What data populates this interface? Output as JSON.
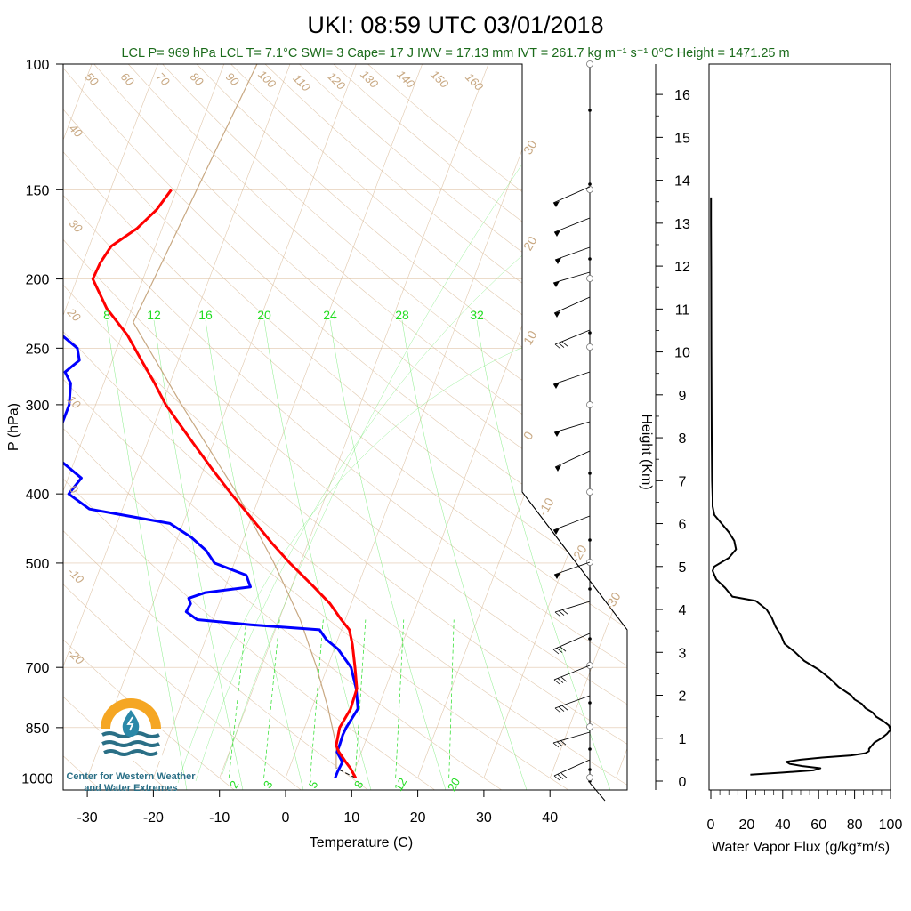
{
  "title": "UKI: 08:59 UTC 03/01/2018",
  "subtitle": {
    "parts": [
      "LCL P= 969 hPa",
      "LCL T= 7.1°C",
      "SWI= 3",
      "Cape= 17 J",
      "IWV = 17.13 mm",
      "IVT = 261.7 kg m⁻¹ s⁻¹",
      "0°C Height = 1471.25 m"
    ]
  },
  "logo": {
    "line1": "Center for Western Weather",
    "line2": "and Water Extremes"
  },
  "colors": {
    "temperature": "#ff0000",
    "dewpoint": "#0000ff",
    "dry_adiabat": "#d6b48f",
    "mixing_ratio": "#22dd22",
    "parcel": "#c8a882",
    "flux": "#000000"
  },
  "chart_data": [
    {
      "type": "line",
      "subtype": "skew-T log-P",
      "xlabel": "Temperature (C)",
      "ylabel": "P (hPa)",
      "xlim": [
        -34,
        52
      ],
      "ylim": [
        1000,
        100
      ],
      "x_ticks": [
        "-30",
        "-20",
        "-10",
        "0",
        "10",
        "20",
        "30",
        "40"
      ],
      "y_ticks": [
        "100",
        "150",
        "200",
        "250",
        "300",
        "400",
        "500",
        "700",
        "850",
        "1000"
      ],
      "dry_adiabat_labels": [
        "50",
        "60",
        "70",
        "80",
        "90",
        "100",
        "110",
        "120",
        "130",
        "140",
        "150",
        "160",
        "40",
        "30",
        "20",
        "10",
        "0",
        "-10",
        "-20"
      ],
      "moist_adiabat_labels": [
        "30",
        "20",
        "10",
        "0",
        "-10",
        "-20",
        "-30"
      ],
      "mixing_ratio_labels_upper": [
        "8",
        "12",
        "16",
        "20",
        "24",
        "28",
        "32"
      ],
      "mixing_ratio_labels_lower": [
        "2",
        "3",
        "5",
        "8",
        "12",
        "20"
      ],
      "series": [
        {
          "name": "temperature",
          "p": [
            1000,
            970,
            950,
            920,
            900,
            850,
            800,
            750,
            700,
            650,
            620,
            600,
            570,
            540,
            500,
            470,
            440,
            400,
            370,
            340,
            300,
            280,
            260,
            240,
            220,
            200,
            190,
            180,
            170,
            160,
            150
          ],
          "t": [
            10.6,
            9.3,
            8.2,
            6.6,
            5.8,
            5.3,
            5.9,
            5.7,
            4.2,
            2.5,
            1.2,
            -0.6,
            -3.2,
            -6.6,
            -11.6,
            -15.3,
            -19.0,
            -24.4,
            -28.6,
            -33.0,
            -39.4,
            -42.3,
            -45.6,
            -49.1,
            -53.8,
            -57.6,
            -57.4,
            -56.7,
            -53.8,
            -51.9,
            -50.8
          ]
        },
        {
          "name": "dewpoint",
          "p": [
            1000,
            980,
            950,
            920,
            900,
            870,
            850,
            800,
            750,
            700,
            660,
            640,
            620,
            610,
            600,
            585,
            570,
            560,
            550,
            540,
            520,
            500,
            480,
            460,
            440,
            420,
            400,
            380,
            360,
            340,
            320,
            300,
            280,
            270,
            260,
            250,
            240,
            220,
            200,
            190,
            180,
            170,
            160,
            150
          ],
          "td": [
            7.5,
            7.5,
            7.7,
            6.3,
            6.3,
            6.2,
            6.3,
            7.0,
            5.6,
            3.6,
            0.6,
            -1.7,
            -3.3,
            -14.0,
            -22.4,
            -24.5,
            -24.3,
            -24.9,
            -22.7,
            -16.2,
            -17.5,
            -23.0,
            -25.0,
            -28.0,
            -32.0,
            -45.0,
            -49.0,
            -48.0,
            -52.0,
            -54.0,
            -54.0,
            -54.0,
            -55.0,
            -56.5,
            -55.0,
            -56.0,
            -59.0,
            -63.5,
            -65.0,
            -67.0,
            -68.0,
            -70.5,
            -67.6,
            -69.0
          ]
        },
        {
          "name": "parcel",
          "p": [
            969,
            900,
            800,
            700,
            600,
            500,
            400,
            300,
            230,
            100
          ],
          "t": [
            7.1,
            5.8,
            2.5,
            -1.6,
            -6.8,
            -14.0,
            -23.5,
            -37.0,
            -49.0,
            -45.0
          ]
        }
      ]
    },
    {
      "type": "line",
      "xlabel": "Water Vapor Flux (g/kg*m/s)",
      "ylabel": "Height (Km)",
      "xlim": [
        0,
        100
      ],
      "ylim": [
        0,
        16.5
      ],
      "x_ticks": [
        "0",
        "20",
        "40",
        "60",
        "80",
        "100"
      ],
      "y_ticks": [
        "0",
        "1",
        "2",
        "3",
        "4",
        "5",
        "6",
        "7",
        "8",
        "9",
        "10",
        "11",
        "12",
        "13",
        "14",
        "15",
        "16"
      ],
      "series": [
        {
          "name": "flux",
          "height_km": [
            0.15,
            0.2,
            0.25,
            0.3,
            0.35,
            0.4,
            0.45,
            0.5,
            0.55,
            0.6,
            0.65,
            0.7,
            0.75,
            0.8,
            0.9,
            1.0,
            1.1,
            1.2,
            1.3,
            1.4,
            1.5,
            1.6,
            1.7,
            1.8,
            1.9,
            2.0,
            2.2,
            2.4,
            2.6,
            2.8,
            3.0,
            3.2,
            3.4,
            3.6,
            3.8,
            4.0,
            4.2,
            4.3,
            4.5,
            4.7,
            4.9,
            5.0,
            5.2,
            5.4,
            5.6,
            5.8,
            6.0,
            6.2,
            6.4,
            6.6,
            7.0,
            8.0,
            10.0,
            12.0,
            13.0,
            13.6
          ],
          "flux": [
            22,
            40,
            57,
            61,
            51,
            44,
            42,
            50,
            62,
            78,
            86,
            88,
            88,
            89,
            91,
            95,
            98,
            100,
            99,
            96,
            92,
            90,
            86,
            84,
            80,
            78,
            71,
            66,
            60,
            52,
            47,
            41,
            39,
            36,
            34,
            31,
            25,
            12,
            8,
            3,
            1,
            2,
            10,
            14,
            13,
            10,
            6,
            2,
            1,
            1,
            0.7,
            0.5,
            0.3,
            0.2,
            0.1,
            0.1
          ]
        }
      ]
    }
  ]
}
